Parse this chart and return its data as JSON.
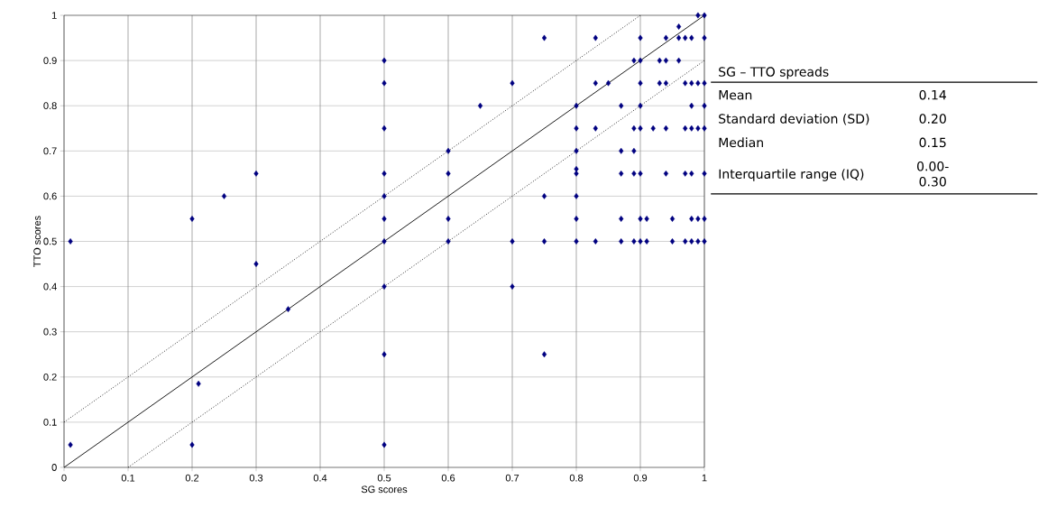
{
  "chart_data": [
    {
      "type": "scatter",
      "xlabel": "SG scores",
      "ylabel": "TTO scores",
      "xlim": [
        0,
        1
      ],
      "ylim": [
        0,
        1
      ],
      "xticks": [
        0,
        0.1,
        0.2,
        0.3,
        0.4,
        0.5,
        0.6,
        0.7,
        0.8,
        0.9,
        1
      ],
      "yticks": [
        0,
        0.1,
        0.2,
        0.3,
        0.4,
        0.5,
        0.6,
        0.7,
        0.8,
        0.9,
        1
      ],
      "grid": true,
      "series": [
        {
          "type": "line",
          "color": "#000000",
          "line_style": "solid",
          "marker": "none",
          "x": [
            0,
            1
          ],
          "values": [
            0,
            1
          ]
        },
        {
          "type": "line",
          "color": "#000000",
          "line_style": "dotted",
          "marker": "none",
          "x": [
            0,
            0.9
          ],
          "values": [
            0.1,
            1
          ]
        },
        {
          "type": "line",
          "color": "#000000",
          "line_style": "dotted",
          "marker": "none",
          "x": [
            0.1,
            1
          ],
          "values": [
            0,
            0.9
          ]
        },
        {
          "type": "scatter",
          "color": "#000080",
          "marker": "diamond",
          "x": [
            0.01,
            0.01,
            0.2,
            0.2,
            0.21,
            0.25,
            0.3,
            0.3,
            0.35,
            0.5,
            0.5,
            0.5,
            0.5,
            0.5,
            0.5,
            0.5,
            0.5,
            0.5,
            0.5,
            0.6,
            0.6,
            0.6,
            0.6,
            0.65,
            0.7,
            0.7,
            0.7,
            0.75,
            0.75,
            0.75,
            0.75,
            0.99,
            1.0,
            0.96,
            0.83,
            0.9,
            0.94,
            0.96,
            0.97,
            0.98,
            1.0,
            0.89,
            0.9,
            0.93,
            0.94,
            0.96,
            0.83,
            0.85,
            0.9,
            0.93,
            0.94,
            0.97,
            0.98,
            0.99,
            1.0,
            0.8,
            0.87,
            0.9,
            0.98,
            1.0,
            0.8,
            0.83,
            0.89,
            0.9,
            0.92,
            0.94,
            0.97,
            0.98,
            0.99,
            1.0,
            0.8,
            0.87,
            0.89,
            0.8,
            0.8,
            0.87,
            0.89,
            0.9,
            0.94,
            0.97,
            0.98,
            1.0,
            0.8,
            0.8,
            0.87,
            0.9,
            0.91,
            0.95,
            0.98,
            0.99,
            1.0,
            0.8,
            0.83,
            0.87,
            0.89,
            0.9,
            0.91,
            0.95,
            0.97,
            0.98,
            0.99,
            1.0
          ],
          "values": [
            0.5,
            0.05,
            0.55,
            0.05,
            0.185,
            0.6,
            0.65,
            0.45,
            0.35,
            0.9,
            0.85,
            0.75,
            0.65,
            0.6,
            0.55,
            0.5,
            0.4,
            0.25,
            0.05,
            0.7,
            0.65,
            0.55,
            0.5,
            0.8,
            0.85,
            0.5,
            0.4,
            0.95,
            0.6,
            0.5,
            0.25,
            1.0,
            1.0,
            0.975,
            0.95,
            0.95,
            0.95,
            0.95,
            0.95,
            0.95,
            0.95,
            0.9,
            0.9,
            0.9,
            0.9,
            0.9,
            0.85,
            0.85,
            0.85,
            0.85,
            0.85,
            0.85,
            0.85,
            0.85,
            0.85,
            0.8,
            0.8,
            0.8,
            0.8,
            0.8,
            0.75,
            0.75,
            0.75,
            0.75,
            0.75,
            0.75,
            0.75,
            0.75,
            0.75,
            0.75,
            0.7,
            0.7,
            0.7,
            0.66,
            0.65,
            0.65,
            0.65,
            0.65,
            0.65,
            0.65,
            0.65,
            0.65,
            0.6,
            0.55,
            0.55,
            0.55,
            0.55,
            0.55,
            0.55,
            0.55,
            0.55,
            0.5,
            0.5,
            0.5,
            0.5,
            0.5,
            0.5,
            0.5,
            0.5,
            0.5,
            0.5,
            0.5
          ]
        }
      ]
    },
    {
      "type": "other",
      "title": "SG – TTO spreads",
      "annotations": [
        "Mean",
        "0.14",
        "Standard deviation (SD)",
        "0.20",
        "Median",
        "0.15",
        "Interquartile range (IQ)",
        "0.00-0.30"
      ]
    }
  ]
}
